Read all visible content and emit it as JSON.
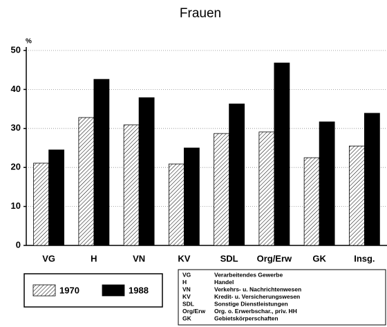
{
  "chart_data": {
    "type": "bar",
    "title": "Frauen",
    "ylabel": "%",
    "categories": [
      "VG",
      "H",
      "VN",
      "KV",
      "SDL",
      "Org/Erw",
      "GK",
      "Insg."
    ],
    "series": [
      {
        "name": "1970",
        "color": "#000000",
        "pattern": "hatch",
        "values": [
          21.1,
          32.8,
          30.9,
          20.9,
          28.7,
          29.1,
          22.5,
          25.5
        ]
      },
      {
        "name": "1988",
        "color": "#000000",
        "pattern": "solid",
        "values": [
          24.5,
          42.6,
          37.9,
          25.0,
          36.3,
          46.8,
          31.7,
          33.9
        ]
      }
    ],
    "ylim": [
      0,
      50
    ],
    "yticks": [
      0,
      10,
      20,
      30,
      40,
      50
    ],
    "grid": true,
    "abbreviations": [
      [
        "VG",
        "Verarbeitendes Gewerbe"
      ],
      [
        "H",
        "Handel"
      ],
      [
        "VN",
        "Verkehrs- u. Nachrichtenwesen"
      ],
      [
        "KV",
        "Kredit- u. Versicherungswesen"
      ],
      [
        "SDL",
        "Sonstige Dienstleistungen"
      ],
      [
        "Org/Erw",
        "Org. o. Erwerbschar., priv. HH"
      ],
      [
        "GK",
        "Gebietskörperschaften"
      ]
    ]
  }
}
